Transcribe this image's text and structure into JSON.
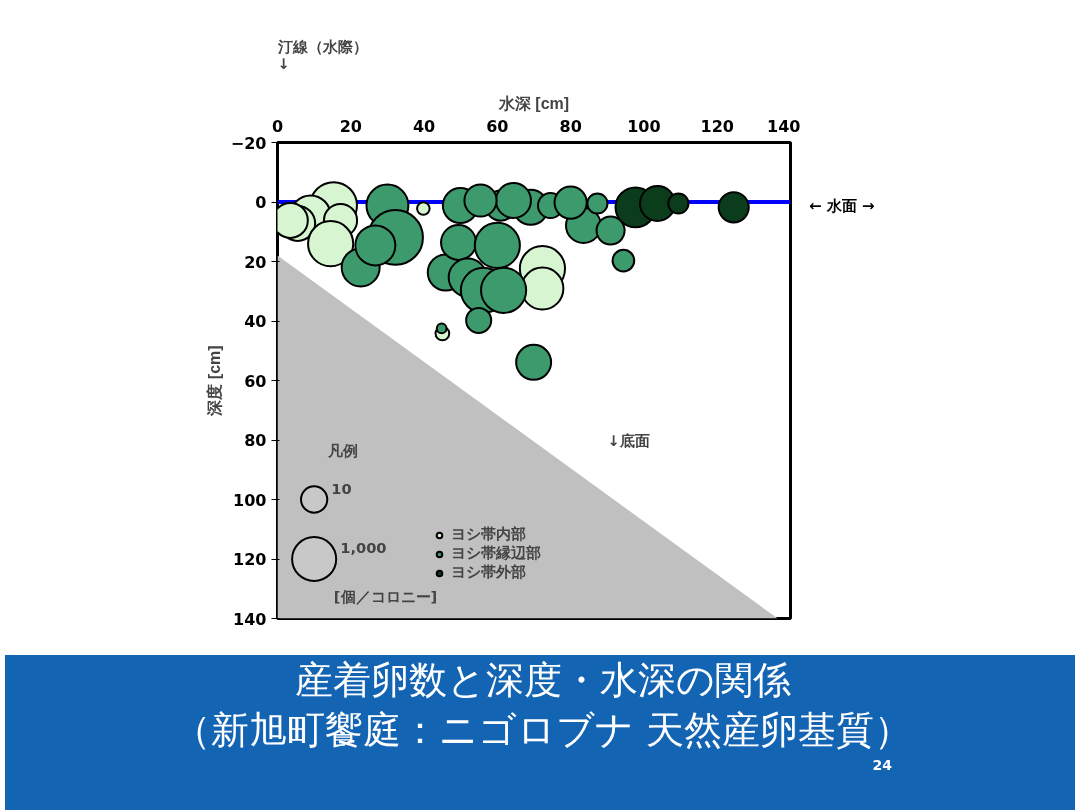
{
  "chart_data": {
    "type": "bubble",
    "title": "産着卵数と深度・水深の関係",
    "subtitle": "（新旭町饗庭：ニゴロブナ 天然産卵基質）",
    "xlabel": "水深 [cm]",
    "ylabel": "深度 [cm]",
    "xlim": [
      0,
      140
    ],
    "xticks": [
      0,
      20,
      40,
      60,
      80,
      100,
      120,
      140
    ],
    "ylim": [
      140,
      -20
    ],
    "yticks": [
      -20,
      0,
      20,
      40,
      60,
      80,
      100,
      120,
      140
    ],
    "grid": false,
    "legend": "bottom left",
    "size_legend": [
      {
        "value": 0.22,
        "label": "10"
      },
      {
        "value": 0.62,
        "label": "1,000"
      }
    ],
    "ref_lines": [
      {
        "axis": "y",
        "value": 0,
        "label": "← 水面 →",
        "color": "#0000ff"
      }
    ],
    "annotations": [
      "汀線（水際）\n↓",
      "↓底面",
      "凡例",
      "[個／コロニー]",
      "24"
    ],
    "series": [
      {
        "type": "area",
        "color": "#c0c0c0",
        "x": [
          0,
          136.5
        ],
        "values": [
          18,
          140
        ]
      },
      {
        "name": "ヨシ帯内部",
        "color": "#d6f5d0",
        "x": [
          15.3,
          9.0,
          5.5,
          17.2,
          14.5,
          3.5,
          39.8,
          45.0,
          72.3,
          72.3
        ],
        "values": [
          1.2,
          4.5,
          7.2,
          6.2,
          14.0,
          6.2,
          2.2,
          44.2,
          22.4,
          29.1
        ],
        "sizes": [
          0.7,
          0.51,
          0.39,
          0.35,
          0.65,
          0.39,
          0.05,
          0.06,
          0.65,
          0.56
        ]
      },
      {
        "name": "ヨシ帯縁辺部",
        "color": "#3c9a6c",
        "x": [
          30.0,
          32.2,
          22.7,
          26.7,
          45.9,
          49.9,
          49.4,
          60.0,
          51.9,
          56.2,
          61.7,
          54.9,
          69.9,
          60.9,
          69.1,
          74.5,
          83.5,
          90.9,
          87.3,
          94.4,
          80.0,
          64.4,
          55.4,
          44.8
        ],
        "values": [
          1.2,
          11.9,
          22.0,
          14.6,
          23.7,
          1.2,
          13.6,
          14.6,
          25.4,
          29.7,
          29.7,
          39.8,
          53.9,
          1.2,
          1.8,
          1.2,
          7.9,
          9.6,
          0.5,
          19.7,
          0.2,
          -0.5,
          -0.5,
          42.5
        ],
        "sizes": [
          0.56,
          0.96,
          0.46,
          0.51,
          0.41,
          0.39,
          0.39,
          0.65,
          0.46,
          0.65,
          0.65,
          0.2,
          0.39,
          0.29,
          0.39,
          0.2,
          0.39,
          0.25,
          0.13,
          0.15,
          0.33,
          0.39,
          0.33,
          0.03
        ]
      },
      {
        "name": "ヨシ帯外部",
        "color": "#0b3d1c",
        "x": [
          97.7,
          103.7,
          109.4,
          124.5
        ],
        "values": [
          1.8,
          0.5,
          0.5,
          1.8
        ],
        "sizes": [
          0.51,
          0.39,
          0.13,
          0.29
        ]
      }
    ]
  }
}
